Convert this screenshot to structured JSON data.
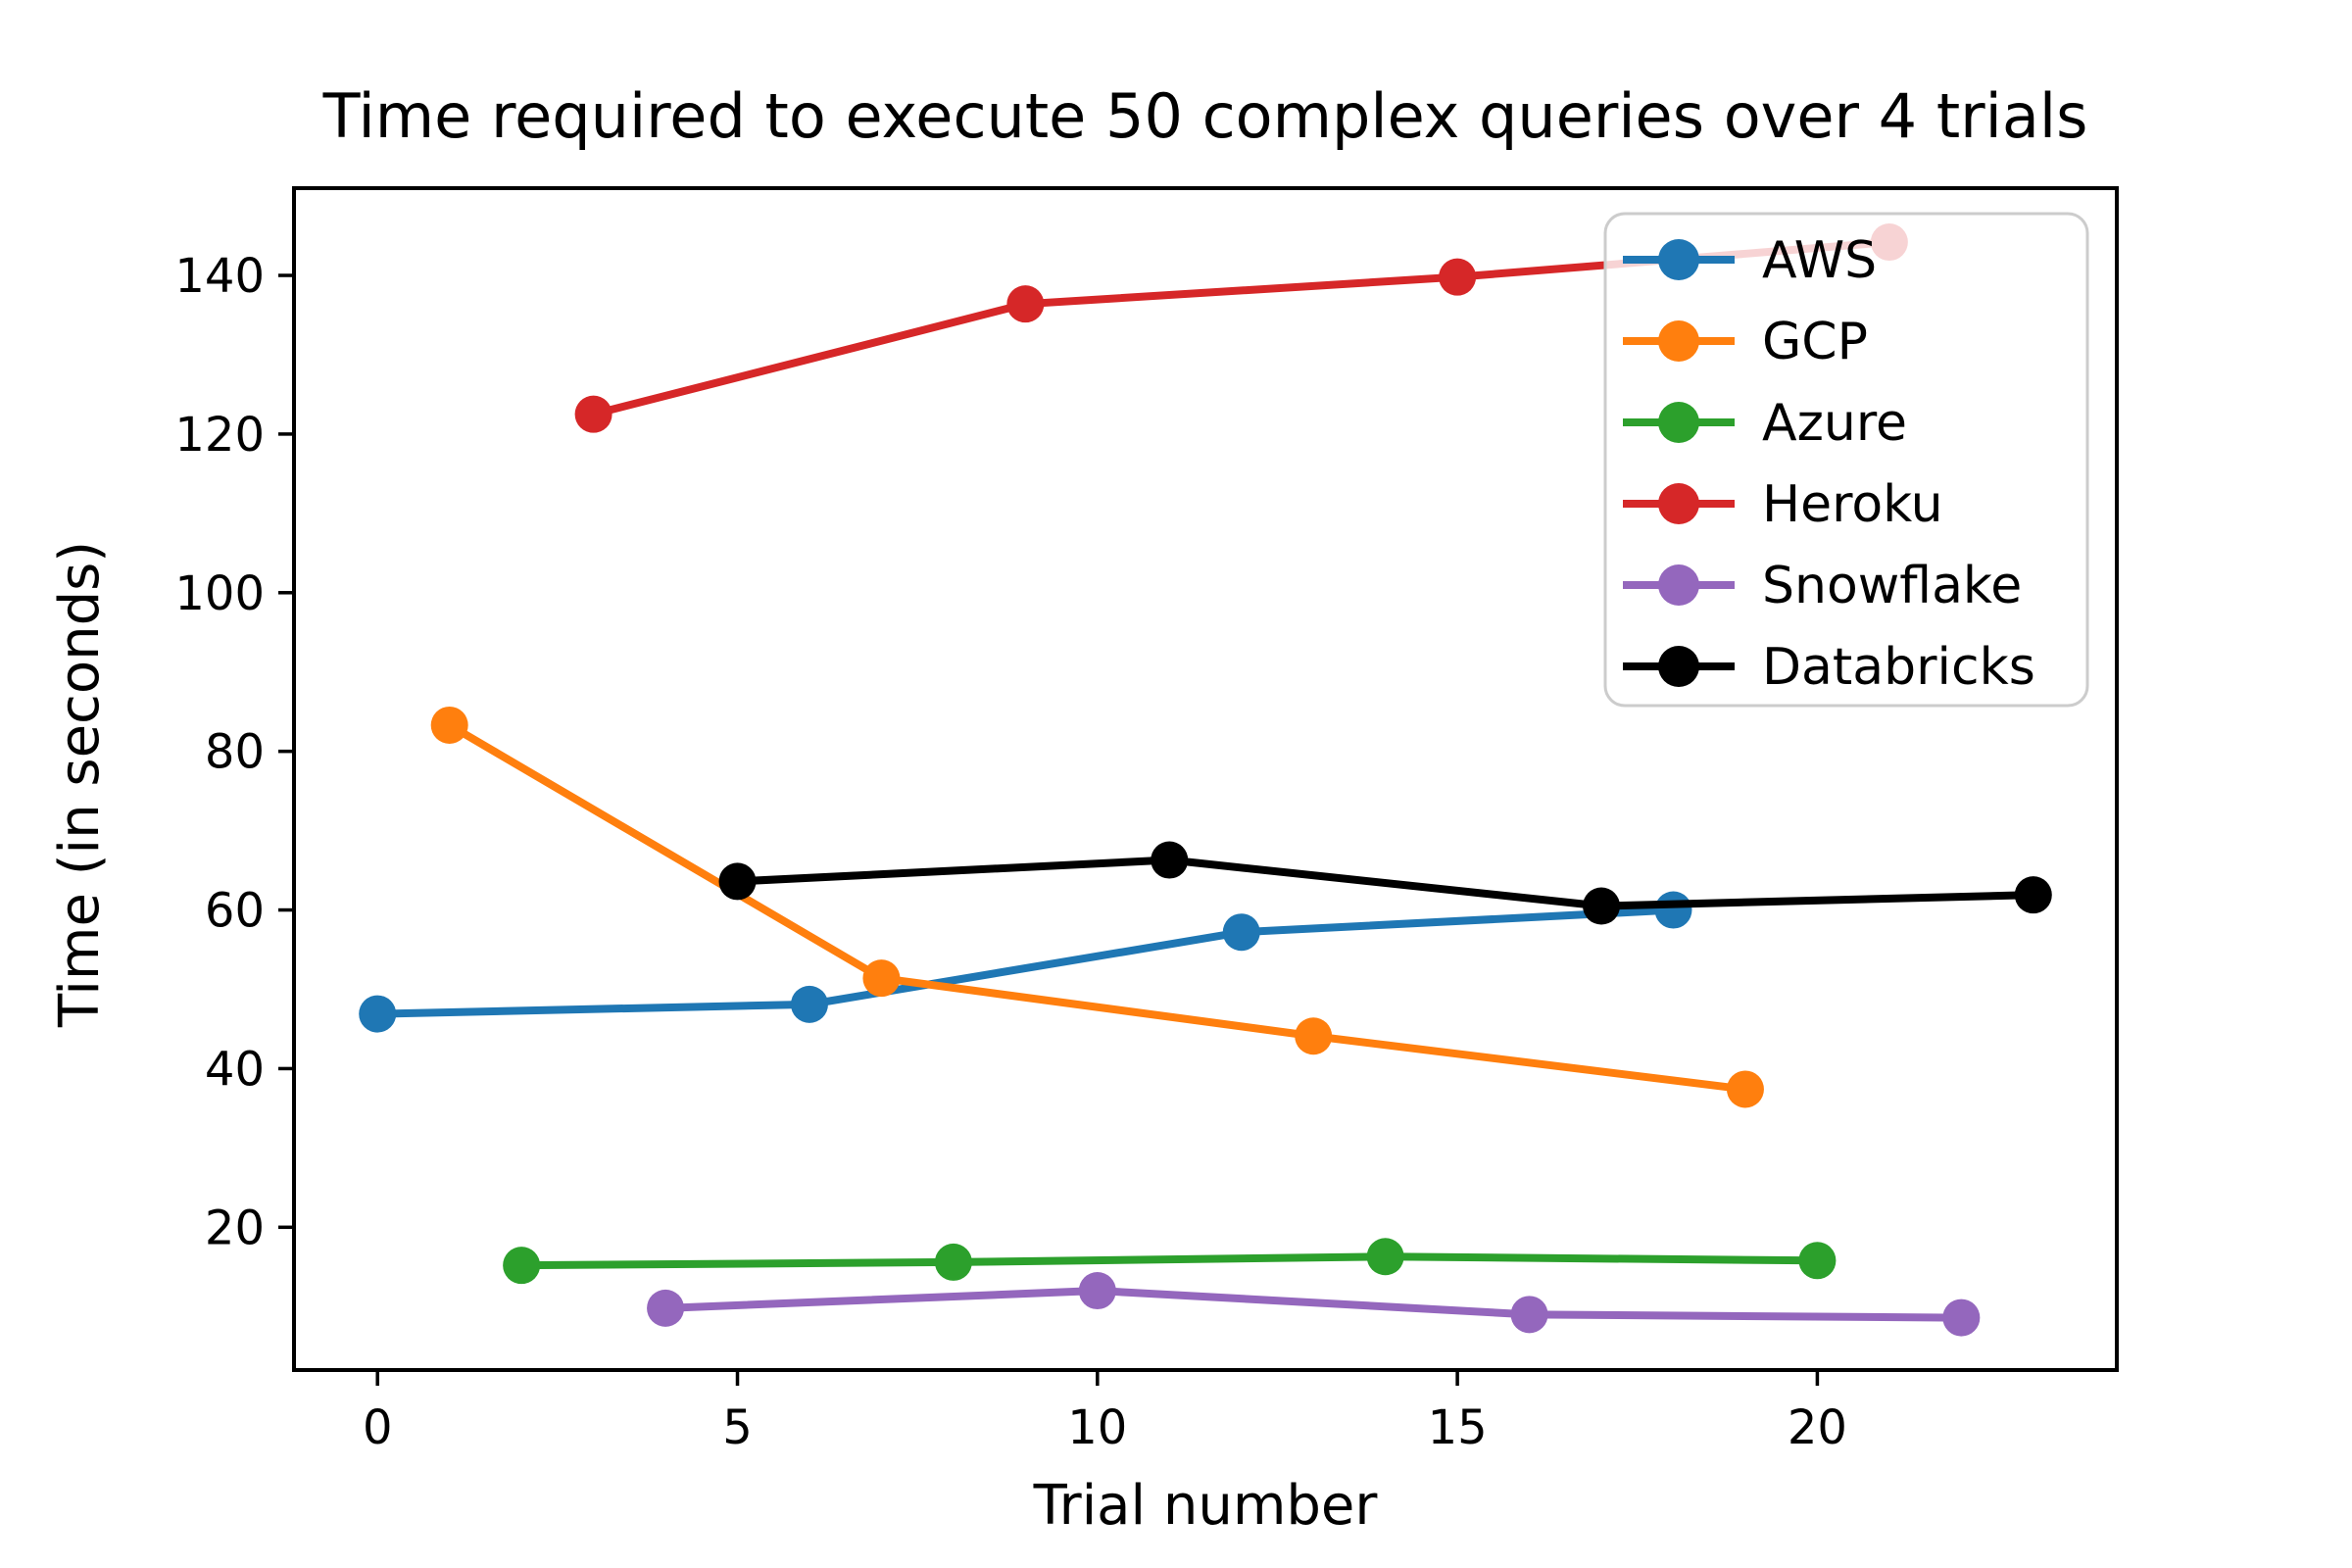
{
  "figure": {
    "title": "Time required to execute 50 complex queries over 4 trials"
  },
  "chart_data": {
    "type": "line",
    "title": "Time required to execute 50 complex queries over 4 trials",
    "xlabel": "Trial number",
    "ylabel": "Time (in seconds)",
    "xlim": [
      -1.16,
      24.16
    ],
    "ylim": [
      2,
      151
    ],
    "xticks": [
      0,
      5,
      10,
      15,
      20
    ],
    "yticks": [
      20,
      40,
      60,
      80,
      100,
      120,
      140
    ],
    "grid": false,
    "legend_position": "upper right",
    "marker": "circle",
    "series": [
      {
        "name": "AWS",
        "color": "#1f77b4",
        "x": [
          0,
          6,
          12,
          18
        ],
        "y": [
          46.9,
          48.1,
          57.2,
          60.0
        ]
      },
      {
        "name": "GCP",
        "color": "#ff7f0e",
        "x": [
          1,
          7,
          13,
          19
        ],
        "y": [
          83.3,
          51.4,
          44.1,
          37.4
        ]
      },
      {
        "name": "Azure",
        "color": "#2ca02c",
        "x": [
          2,
          8,
          14,
          20
        ],
        "y": [
          15.2,
          15.6,
          16.3,
          15.8
        ]
      },
      {
        "name": "Heroku",
        "color": "#d62728",
        "x": [
          3,
          9,
          15,
          21
        ],
        "y": [
          122.5,
          136.4,
          139.8,
          144.2
        ]
      },
      {
        "name": "Snowflake",
        "color": "#9467bd",
        "x": [
          4,
          10,
          16,
          22
        ],
        "y": [
          9.8,
          12.0,
          9.0,
          8.6
        ]
      },
      {
        "name": "Databricks",
        "color": "#000000",
        "x": [
          5,
          11,
          17,
          23
        ],
        "y": [
          63.6,
          66.3,
          60.5,
          61.9
        ]
      }
    ],
    "legend": {
      "labels": [
        "AWS",
        "GCP",
        "Azure",
        "Heroku",
        "Snowflake",
        "Databricks"
      ],
      "border_color": "#cccccc",
      "background": "rgba(255,255,255,0.8)"
    }
  },
  "style": {
    "axis_color": "#000000",
    "background": "#ffffff",
    "tick_color": "#000000"
  }
}
